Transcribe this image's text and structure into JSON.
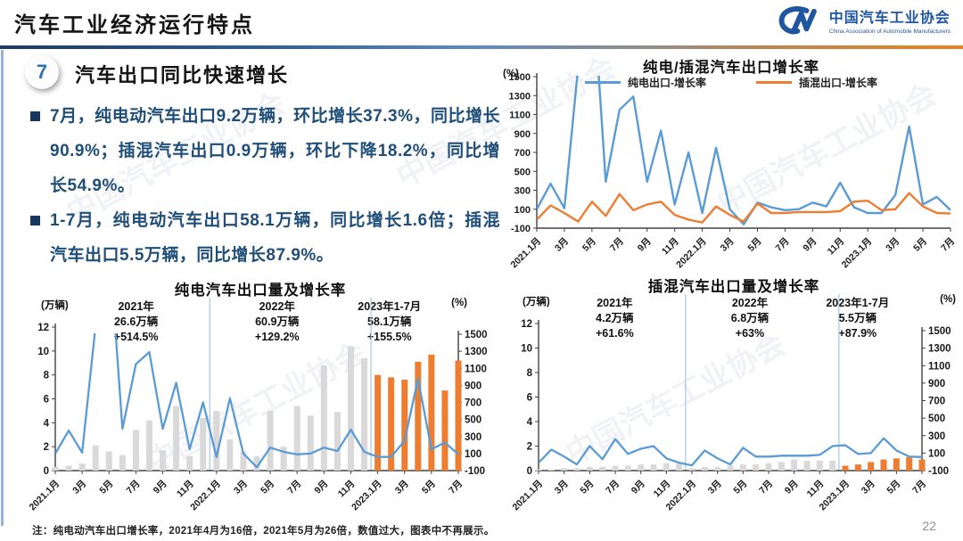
{
  "page": {
    "title": "汽车工业经济运行特点",
    "page_number": "22",
    "note": "注：纯电动汽车出口增长率，2021年4月为16倍，2021年5月为26倍，数值过大，图表中不再展示。",
    "watermark": "中国汽车工业协会"
  },
  "logo": {
    "cn": "中国汽车工业协会",
    "en": "China Association of Automobile Manufacturers"
  },
  "section": {
    "number": "7",
    "heading": "汽车出口同比快速增长"
  },
  "bullets": [
    {
      "text": "7月，纯电动汽车出口9.2万辆，环比增长37.3%，同比增长90.9%；插混汽车出口0.9万辆，环比下降18.2%，同比增长54.9%。"
    },
    {
      "text": "1-7月，纯电动汽车出口58.1万辆，同比增长1.6倍；插混汽车出口5.5万辆，同比增长87.9%。"
    }
  ],
  "colors": {
    "bev_line": "#5B9BD5",
    "phev_line": "#ED7D31",
    "bar_past": "#D9D9D9",
    "bar_2023": "#ED7D31",
    "accent_navy": "#17375E",
    "bullet_text": "#1F4E79",
    "logo_blue": "#2056A0"
  },
  "chart_data": [
    {
      "id": "growth",
      "type": "line",
      "title": "纯电/插混汽车出口增长率",
      "y_unit": "(%)",
      "ylim": [
        -100,
        1500
      ],
      "y_ticks": [
        1500,
        1300,
        1100,
        900,
        700,
        500,
        300,
        100,
        -100
      ],
      "x_tick_labels": [
        "2021.1月",
        "3月",
        "5月",
        "7月",
        "9月",
        "11月",
        "2022.1月",
        "3月",
        "5月",
        "7月",
        "9月",
        "11月",
        "2023.1月",
        "3月",
        "5月",
        "7月"
      ],
      "x_tick_every": 2,
      "legend_position": "top",
      "series": [
        {
          "name": "纯电出口-增长率",
          "color": "#5B9BD5",
          "values": [
            100,
            370,
            110,
            1600,
            2600,
            390,
            1150,
            1290,
            390,
            930,
            150,
            700,
            60,
            750,
            100,
            -60,
            170,
            120,
            90,
            100,
            170,
            130,
            380,
            120,
            60,
            60,
            250,
            975,
            150,
            230,
            91
          ]
        },
        {
          "name": "插混出口-增长率",
          "color": "#ED7D31",
          "values": [
            -10,
            140,
            60,
            -30,
            180,
            30,
            260,
            90,
            150,
            180,
            40,
            -10,
            -40,
            130,
            40,
            -30,
            160,
            60,
            60,
            70,
            70,
            70,
            80,
            180,
            190,
            90,
            100,
            270,
            130,
            60,
            55
          ]
        }
      ],
      "off_chart_values_note": {
        "2021年4月": "16倍",
        "2021年5月": "26倍"
      }
    },
    {
      "id": "bev",
      "type": "bar-line",
      "title": "纯电汽车出口量及增长率",
      "left_unit": "(万辆)",
      "right_unit": "(%)",
      "left_ylim": [
        0,
        12
      ],
      "left_ticks": [
        12,
        10,
        8,
        6,
        4,
        2,
        0
      ],
      "right_ylim": [
        -100,
        1500
      ],
      "right_ticks": [
        1500,
        1300,
        1100,
        900,
        700,
        500,
        300,
        100,
        -100
      ],
      "x_tick_labels": [
        "2021.1月",
        "3月",
        "5月",
        "7月",
        "9月",
        "11月",
        "2022.1月",
        "3月",
        "5月",
        "7月",
        "9月",
        "11月",
        "2023.1月",
        "3月",
        "5月",
        "7月"
      ],
      "x_tick_every": 2,
      "annotations": [
        {
          "period": "2021年",
          "volume": "26.6万辆",
          "growth": "+514.5%"
        },
        {
          "period": "2022年",
          "volume": "60.9万辆",
          "growth": "+129.2%"
        },
        {
          "period": "2023年1-7月",
          "volume": "58.1万辆",
          "growth": "+155.5%"
        }
      ],
      "bars": {
        "name": "纯电出口量(万辆)",
        "color_past": "#D9D9D9",
        "color_current": "#ED7D31",
        "current_start_index": 24,
        "values": [
          0.3,
          0.4,
          0.6,
          2.1,
          1.6,
          1.3,
          3.4,
          4.2,
          1.7,
          5.4,
          1.2,
          4.4,
          5.0,
          2.6,
          1.6,
          1.2,
          5.0,
          2.0,
          5.4,
          4.6,
          8.8,
          4.9,
          10.4,
          9.4,
          8.0,
          7.8,
          7.6,
          9.1,
          9.7,
          6.7,
          9.2
        ]
      },
      "line": {
        "name": "纯电出口增长率(%)",
        "color": "#5B9BD5",
        "values": [
          100,
          370,
          110,
          1600,
          2600,
          390,
          1150,
          1290,
          390,
          930,
          150,
          700,
          60,
          750,
          100,
          -60,
          170,
          120,
          90,
          100,
          170,
          130,
          380,
          120,
          60,
          60,
          250,
          975,
          150,
          230,
          91
        ]
      },
      "year_separator_after": [
        11,
        23
      ]
    },
    {
      "id": "phev",
      "type": "bar-line",
      "title": "插混汽车出口量及增长率",
      "left_unit": "(万辆)",
      "right_unit": "(%)",
      "left_ylim": [
        0,
        12
      ],
      "left_ticks": [
        12,
        10,
        8,
        6,
        4,
        2,
        0
      ],
      "right_ylim": [
        -100,
        1500
      ],
      "right_ticks": [
        1500,
        1300,
        1100,
        900,
        700,
        500,
        300,
        100,
        -100
      ],
      "x_tick_labels": [
        "2021.1月",
        "3月",
        "5月",
        "7月",
        "9月",
        "11月",
        "2022.1月",
        "3月",
        "5月",
        "7月",
        "9月",
        "11月",
        "2023.1月",
        "3月",
        "5月",
        "7月"
      ],
      "x_tick_every": 2,
      "annotations": [
        {
          "period": "2021年",
          "volume": "4.2万辆",
          "growth": "+61.6%"
        },
        {
          "period": "2022年",
          "volume": "6.8万辆",
          "growth": "+63%"
        },
        {
          "period": "2023年1-7月",
          "volume": "5.5万辆",
          "growth": "+87.9%"
        }
      ],
      "bars": {
        "name": "插混出口量(万辆)",
        "color_past": "#D9D9D9",
        "color_current": "#ED7D31",
        "current_start_index": 24,
        "values": [
          0.1,
          0.1,
          0.2,
          0.2,
          0.3,
          0.3,
          0.4,
          0.4,
          0.5,
          0.5,
          0.6,
          0.6,
          0.2,
          0.3,
          0.3,
          0.4,
          0.5,
          0.5,
          0.6,
          0.7,
          0.9,
          0.8,
          0.8,
          0.8,
          0.4,
          0.5,
          0.7,
          0.9,
          1.0,
          1.1,
          0.9
        ]
      },
      "line": {
        "name": "插混出口增长率(%)",
        "color": "#5B9BD5",
        "values": [
          -10,
          140,
          60,
          -30,
          180,
          30,
          260,
          90,
          150,
          180,
          40,
          -10,
          -40,
          130,
          40,
          -30,
          160,
          60,
          60,
          70,
          70,
          70,
          80,
          180,
          190,
          90,
          100,
          270,
          130,
          60,
          55
        ]
      },
      "year_separator_after": [
        11,
        23
      ]
    }
  ]
}
